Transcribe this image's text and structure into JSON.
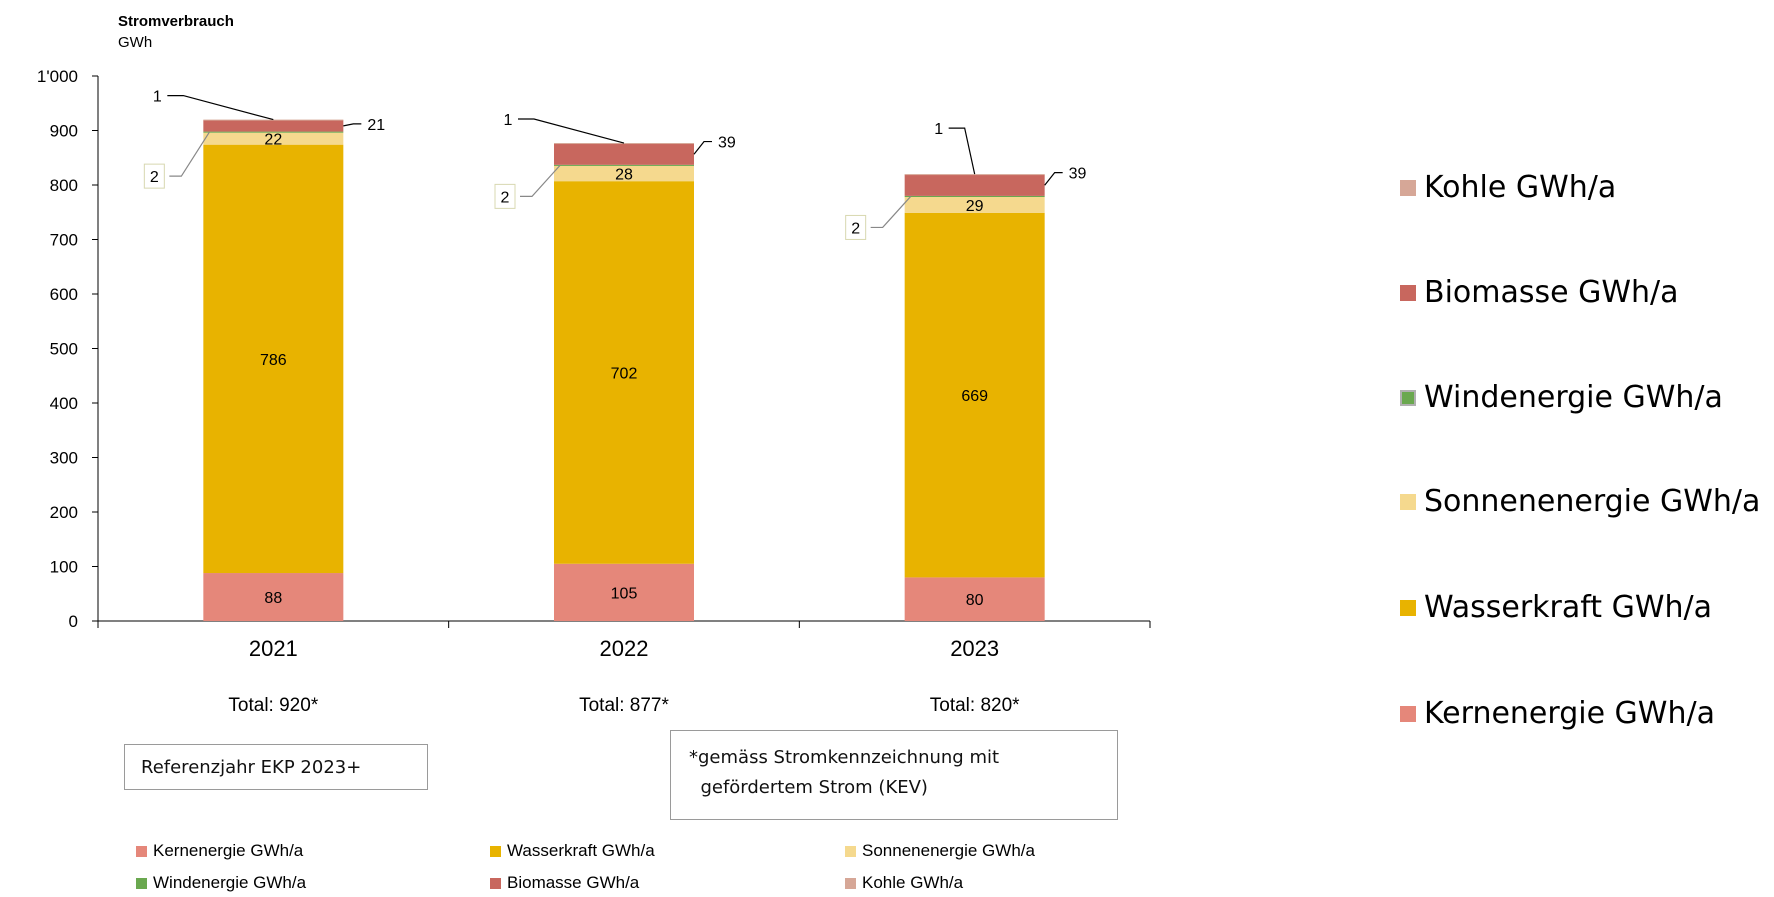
{
  "chart_data": {
    "type": "bar",
    "stacked": true,
    "title": "Stromverbrauch",
    "ylabel": "GWh",
    "xlabel": "",
    "ylim": [
      0,
      1000
    ],
    "yticks": [
      "0",
      "100",
      "200",
      "300",
      "400",
      "500",
      "600",
      "700",
      "800",
      "900",
      "1'000"
    ],
    "categories": [
      "2021",
      "2022",
      "2023"
    ],
    "totals": [
      "Total: 920*",
      "Total: 877*",
      "Total: 820*"
    ],
    "series": [
      {
        "name": "Kernenergie GWh/a",
        "color": "#E5877A",
        "values": [
          88,
          105,
          80
        ],
        "labels": [
          "88",
          "105",
          "80"
        ]
      },
      {
        "name": "Wasserkraft GWh/a",
        "color": "#E8B300",
        "values": [
          786,
          702,
          669
        ],
        "labels": [
          "786",
          "702",
          "669"
        ]
      },
      {
        "name": "Sonnenenergie GWh/a",
        "color": "#F5D98E",
        "values": [
          22,
          28,
          29
        ],
        "labels": [
          "22",
          "28",
          "29"
        ]
      },
      {
        "name": "Windenergie GWh/a",
        "color": "#6AA84F",
        "values": [
          2,
          2,
          2
        ],
        "labels": [
          "2",
          "2",
          "2"
        ]
      },
      {
        "name": "Biomasse GWh/a",
        "color": "#C8675E",
        "values": [
          21,
          39,
          39
        ],
        "labels": [
          "21",
          "39",
          "39"
        ]
      },
      {
        "name": "Kohle GWh/a",
        "color": "#D6A797",
        "values": [
          1,
          1,
          1
        ],
        "labels": [
          "1",
          "1",
          "1"
        ]
      }
    ],
    "legend_bottom_order": [
      "Kernenergie GWh/a",
      "Wasserkraft GWh/a",
      "Sonnenenergie GWh/a",
      "Windenergie GWh/a",
      "Biomasse GWh/a",
      "Kohle GWh/a"
    ],
    "legend_right_order": [
      "Kohle GWh/a",
      "Biomasse GWh/a",
      "Windenergie GWh/a",
      "Sonnenenergie GWh/a",
      "Wasserkraft GWh/a",
      "Kernenergie GWh/a"
    ],
    "legend_placement": "right and bottom"
  },
  "notes": {
    "reference_year": "Referenzjahr EKP 2023+",
    "footnote_line1": "*gemäss Stromkennzeichnung mit",
    "footnote_line2": "  gefördertem Strom (KEV)"
  }
}
